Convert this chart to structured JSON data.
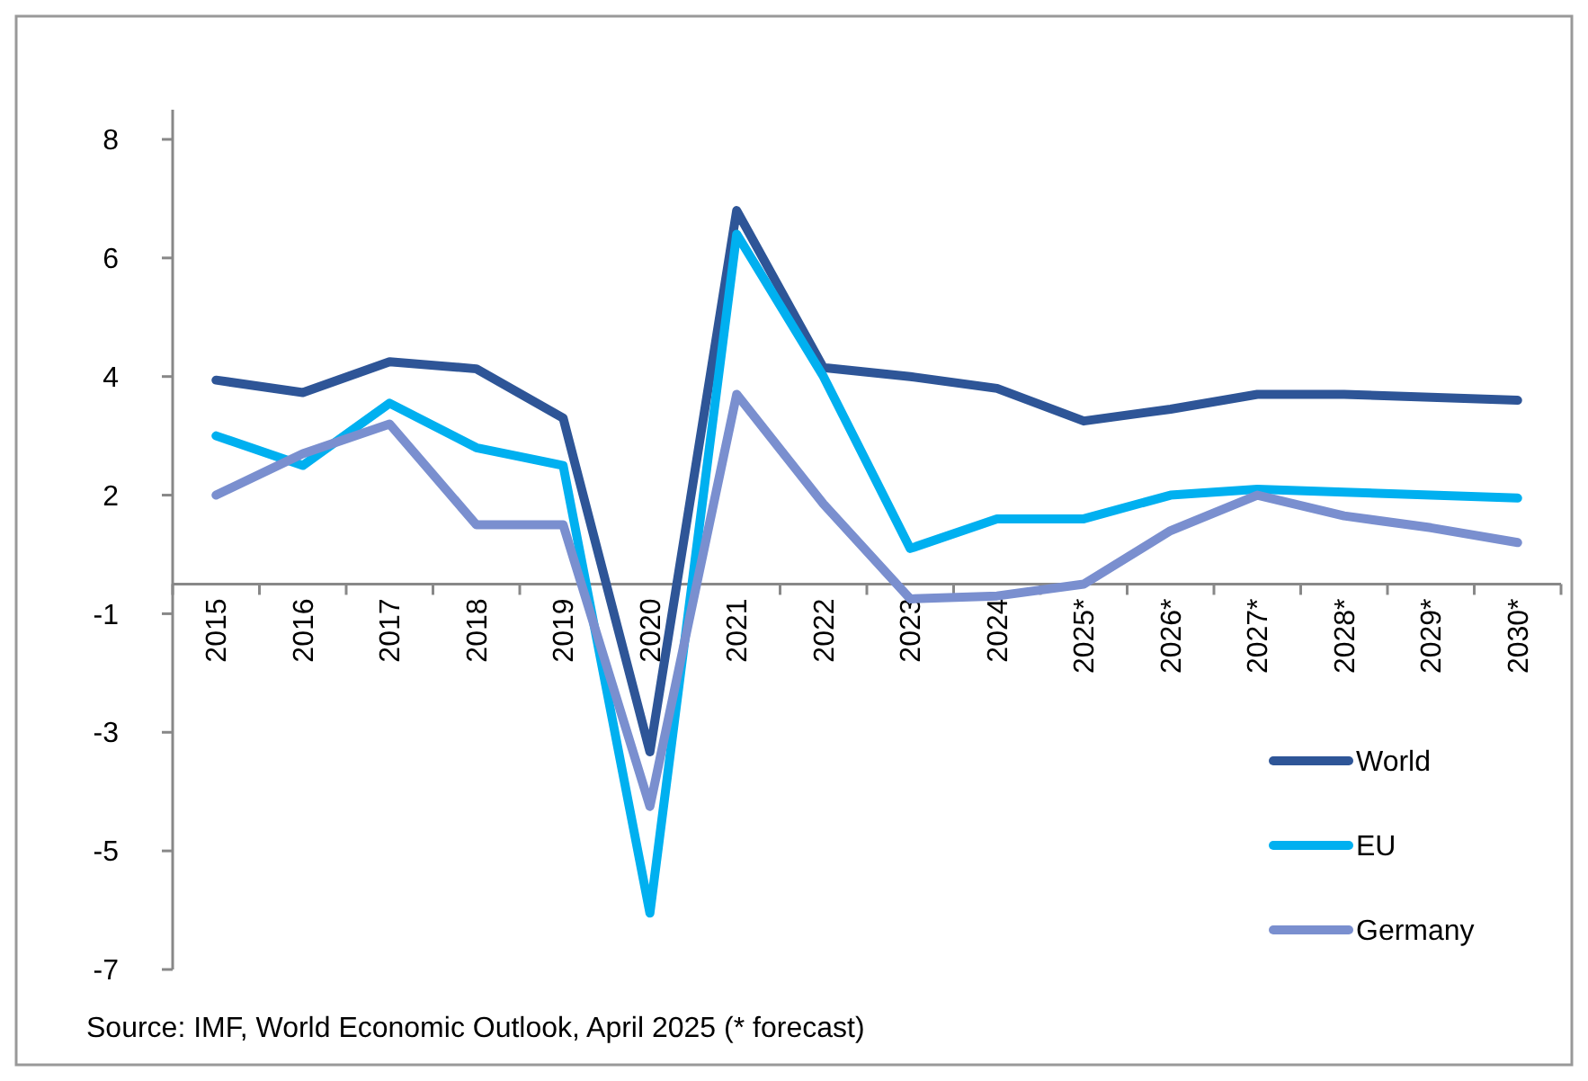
{
  "chart_data": {
    "type": "line",
    "categories": [
      "2015",
      "2016",
      "2017",
      "2018",
      "2019",
      "2020",
      "2021",
      "2022",
      "2023",
      "2024",
      "2025*",
      "2026*",
      "2027*",
      "2028*",
      "2029*",
      "2030*"
    ],
    "series": [
      {
        "name": "World",
        "color": "#2e5597",
        "values": [
          3.44,
          3.23,
          3.75,
          3.63,
          2.8,
          -2.83,
          6.3,
          3.65,
          3.5,
          3.3,
          2.75,
          2.95,
          3.2,
          3.2,
          3.15,
          3.1
        ]
      },
      {
        "name": "EU",
        "color": "#00b0f0",
        "values": [
          2.5,
          2.0,
          3.05,
          2.3,
          2.0,
          -5.55,
          5.9,
          3.5,
          0.6,
          1.1,
          1.1,
          1.5,
          1.6,
          1.55,
          1.5,
          1.45
        ]
      },
      {
        "name": "Germany",
        "color": "#7a8fcf",
        "values": [
          1.5,
          2.2,
          2.7,
          1.0,
          1.0,
          -3.75,
          3.2,
          1.35,
          -0.25,
          -0.2,
          0.0,
          0.9,
          1.5,
          1.15,
          0.95,
          0.7
        ]
      }
    ],
    "ylim": [
      -6.5,
      8
    ],
    "yticks": [
      {
        "value": 7.5,
        "label": "8"
      },
      {
        "value": 5.5,
        "label": "6"
      },
      {
        "value": 3.5,
        "label": "4"
      },
      {
        "value": 1.5,
        "label": "2"
      },
      {
        "value": -0.5,
        "label": "-1"
      },
      {
        "value": -2.5,
        "label": "-3"
      },
      {
        "value": -4.5,
        "label": "-5"
      },
      {
        "value": -6.5,
        "label": "-7"
      }
    ],
    "grid": false,
    "legend": "bottom right",
    "marker": "none",
    "line_style": "solid",
    "annotations": [
      "Source: IMF, World Economic Outlook, April 2025 (* forecast)"
    ]
  }
}
